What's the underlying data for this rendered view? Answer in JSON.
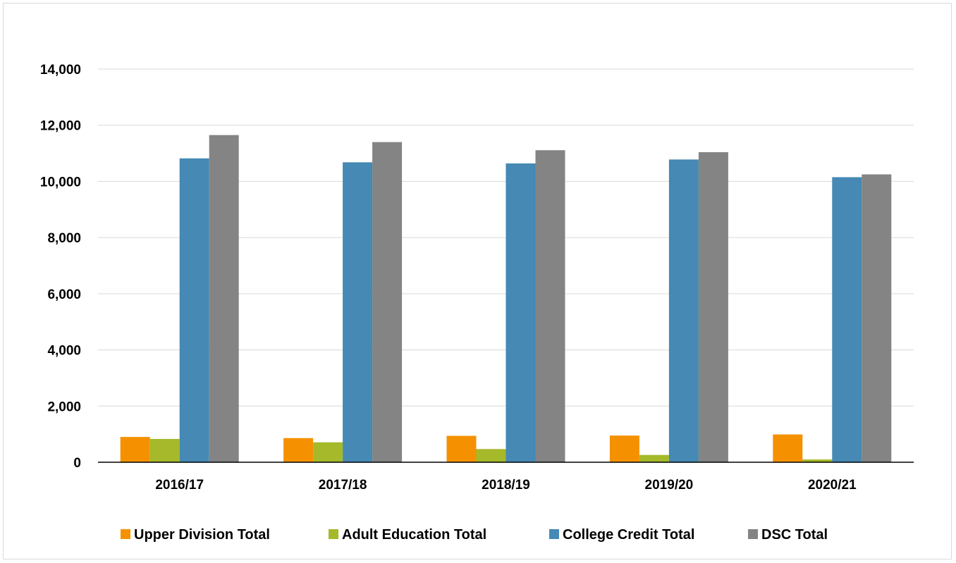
{
  "chart_data": {
    "type": "bar",
    "title": "",
    "xlabel": "",
    "ylabel": "",
    "categories": [
      "2016/17",
      "2017/18",
      "2018/19",
      "2019/20",
      "2020/21"
    ],
    "ylim": [
      0,
      14000
    ],
    "yticks": [
      0,
      2000,
      4000,
      6000,
      8000,
      10000,
      12000,
      14000
    ],
    "ytick_labels": [
      "0",
      "2,000",
      "4,000",
      "6,000",
      "8,000",
      "10,000",
      "12,000",
      "14,000"
    ],
    "grid": true,
    "legend_position": "bottom",
    "series": [
      {
        "name": "Upper Division Total",
        "color": "#f59100",
        "values": [
          900,
          860,
          940,
          950,
          990
        ]
      },
      {
        "name": "Adult Education Total",
        "color": "#a5b92a",
        "values": [
          830,
          710,
          470,
          260,
          100
        ]
      },
      {
        "name": "College Credit Total",
        "color": "#4589b4",
        "values": [
          10820,
          10680,
          10640,
          10780,
          10150
        ]
      },
      {
        "name": "DSC Total",
        "color": "#848484",
        "values": [
          11650,
          11400,
          11110,
          11040,
          10250
        ]
      }
    ]
  }
}
